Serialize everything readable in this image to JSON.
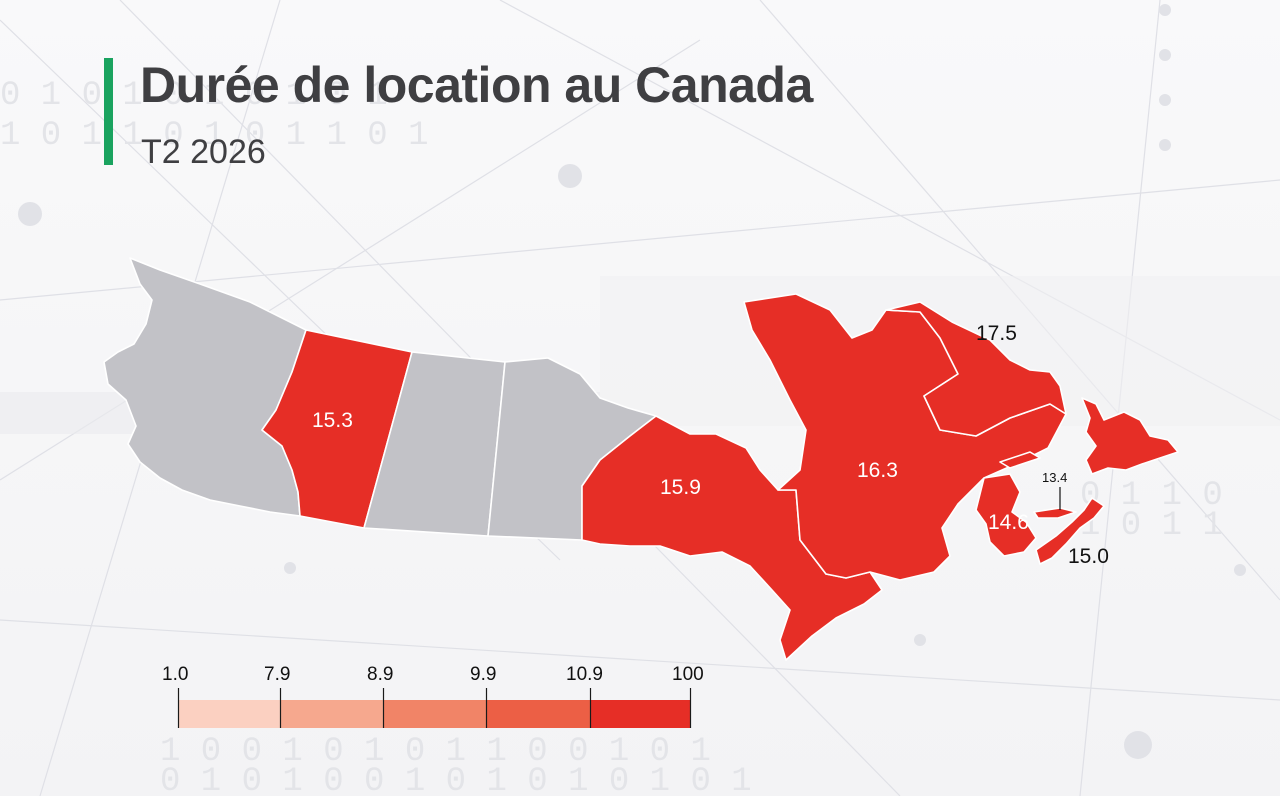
{
  "title": "Durée de location au Canada",
  "subtitle": "T2 2026",
  "colors": {
    "accent": "#1aa35f",
    "no_data": "#c2c2c7",
    "highlight": "#e62e26",
    "title_text": "#3f3f42"
  },
  "provinces": {
    "bc": {
      "value": null
    },
    "ab": {
      "value": "15.3"
    },
    "sk": {
      "value": null
    },
    "mb": {
      "value": null
    },
    "on": {
      "value": "15.9"
    },
    "qc": {
      "value": "16.3"
    },
    "nl": {
      "value": "17.5"
    },
    "nb": {
      "value": "14.6"
    },
    "pe": {
      "value": "13.4"
    },
    "ns": {
      "value": "15.0"
    }
  },
  "legend": {
    "breaks": [
      "1.0",
      "7.9",
      "8.9",
      "9.9",
      "10.9",
      "100"
    ],
    "colors": [
      "#fbd0c1",
      "#f6a88e",
      "#f18467",
      "#ec5f45",
      "#e62e26"
    ]
  }
}
